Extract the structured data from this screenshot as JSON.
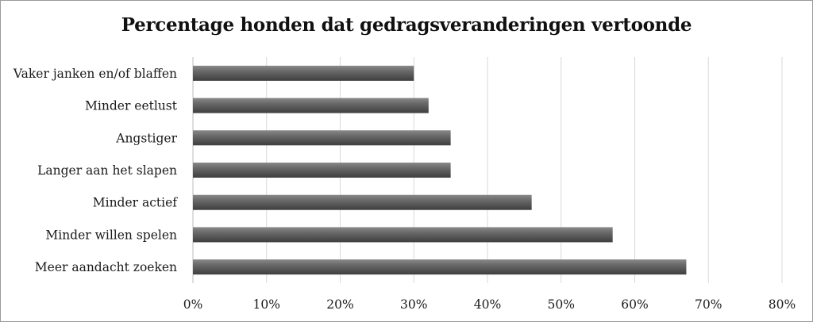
{
  "chart_data": {
    "type": "bar",
    "orientation": "horizontal",
    "title": "Percentage honden dat gedragsveranderingen vertoonde",
    "categories": [
      "Vaker janken en/of blaffen",
      "Minder eetlust",
      "Angstiger",
      "Langer aan het slapen",
      "Minder actief",
      "Minder willen spelen",
      "Meer aandacht zoeken"
    ],
    "values": [
      0.3,
      0.32,
      0.35,
      0.35,
      0.46,
      0.57,
      0.67
    ],
    "xlim": [
      0,
      0.8
    ],
    "xticks": [
      "0%",
      "10%",
      "20%",
      "30%",
      "40%",
      "50%",
      "60%",
      "70%",
      "80%"
    ],
    "grid": "vertical",
    "bar_color": "#5e5e5e"
  }
}
